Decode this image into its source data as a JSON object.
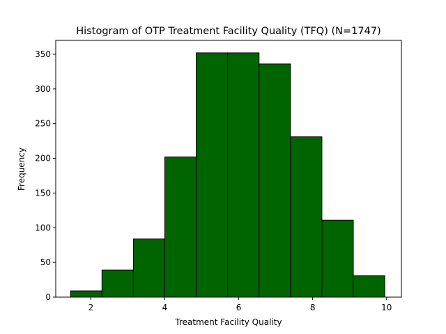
{
  "chart_data": {
    "type": "bar",
    "subtype": "histogram",
    "title": "Histogram of OTP Treatment Facility Quality (TFQ) (N=1747)",
    "xlabel": "Treatment Facility Quality",
    "ylabel": "Frequency",
    "bin_edges": [
      1.45,
      2.3,
      3.15,
      4.0,
      4.85,
      5.7,
      6.55,
      7.4,
      8.25,
      9.1,
      9.95
    ],
    "values": [
      9,
      39,
      84,
      202,
      352,
      352,
      336,
      231,
      111,
      31
    ],
    "xlim": [
      1.05,
      10.4
    ],
    "ylim": [
      0,
      370
    ],
    "xticks": [
      2,
      4,
      6,
      8,
      10
    ],
    "xtick_labels": [
      "2",
      "4",
      "6",
      "8",
      "10"
    ],
    "yticks": [
      0,
      50,
      100,
      150,
      200,
      250,
      300,
      350
    ],
    "ytick_labels": [
      "0",
      "50",
      "100",
      "150",
      "200",
      "250",
      "300",
      "350"
    ],
    "grid": false,
    "bar_color": "#006400",
    "edge_color": "#000000"
  }
}
